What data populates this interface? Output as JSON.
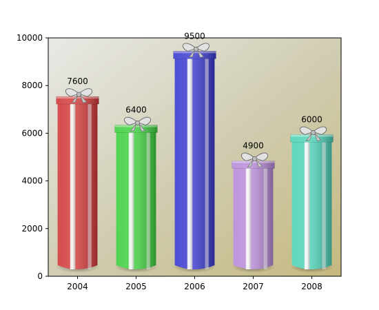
{
  "chart_data": {
    "type": "bar",
    "title": "",
    "xlabel": "",
    "ylabel": "",
    "categories": [
      "2004",
      "2005",
      "2006",
      "2007",
      "2008"
    ],
    "values": [
      7600,
      6400,
      9500,
      4900,
      6000
    ],
    "data_labels": [
      "7600",
      "6400",
      "9500",
      "4900",
      "6000"
    ],
    "colors": [
      "#d23a3a",
      "#3fcf3f",
      "#3a3ad0",
      "#b88ad8",
      "#4fd3b8"
    ],
    "ylim": [
      0,
      10000
    ],
    "yticks": [
      0,
      2000,
      4000,
      6000,
      8000,
      10000
    ],
    "ytick_labels": [
      "0",
      "2000",
      "4000",
      "6000",
      "8000",
      "10000"
    ],
    "grid": false,
    "style": "gift-box bars with ribbon and bow",
    "background": "diagonal gradient from light grey (top-left) to khaki (bottom-right)"
  }
}
